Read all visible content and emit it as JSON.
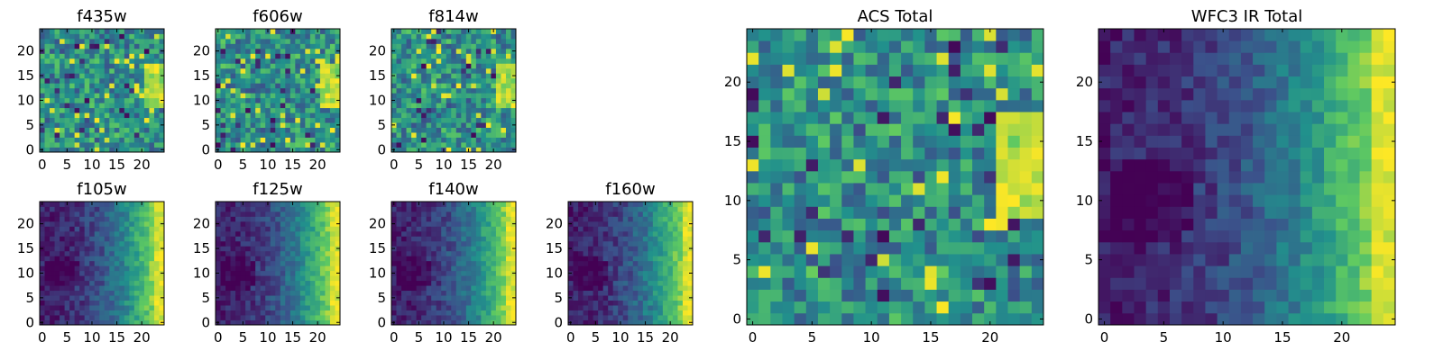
{
  "chart_data": [
    {
      "type": "heatmap",
      "title": "f435w",
      "pattern": "noise",
      "xticks": [
        0,
        5,
        10,
        15,
        20
      ],
      "yticks": [
        0,
        5,
        10,
        15,
        20
      ],
      "xlim": [
        0,
        25
      ],
      "ylim": [
        0,
        25
      ],
      "grid": false,
      "legend": "none"
    },
    {
      "type": "heatmap",
      "title": "f606w",
      "pattern": "noise",
      "xticks": [
        0,
        5,
        10,
        15,
        20
      ],
      "yticks": [
        0,
        5,
        10,
        15,
        20
      ],
      "xlim": [
        0,
        25
      ],
      "ylim": [
        0,
        25
      ],
      "grid": false,
      "legend": "none"
    },
    {
      "type": "heatmap",
      "title": "f814w",
      "pattern": "noise",
      "xticks": [
        0,
        5,
        10,
        15,
        20
      ],
      "yticks": [
        0,
        5,
        10,
        15,
        20
      ],
      "xlim": [
        0,
        25
      ],
      "ylim": [
        0,
        25
      ],
      "grid": false,
      "legend": "none"
    },
    {
      "type": "heatmap",
      "title": "f105w",
      "pattern": "gradient",
      "xticks": [
        0,
        5,
        10,
        15,
        20
      ],
      "yticks": [
        0,
        5,
        10,
        15,
        20
      ],
      "xlim": [
        0,
        25
      ],
      "ylim": [
        0,
        25
      ],
      "grid": false,
      "legend": "none"
    },
    {
      "type": "heatmap",
      "title": "f125w",
      "pattern": "gradient",
      "xticks": [
        0,
        5,
        10,
        15,
        20
      ],
      "yticks": [
        0,
        5,
        10,
        15,
        20
      ],
      "xlim": [
        0,
        25
      ],
      "ylim": [
        0,
        25
      ],
      "grid": false,
      "legend": "none"
    },
    {
      "type": "heatmap",
      "title": "f140w",
      "pattern": "gradient",
      "xticks": [
        0,
        5,
        10,
        15,
        20
      ],
      "yticks": [
        0,
        5,
        10,
        15,
        20
      ],
      "xlim": [
        0,
        25
      ],
      "ylim": [
        0,
        25
      ],
      "grid": false,
      "legend": "none"
    },
    {
      "type": "heatmap",
      "title": "f160w",
      "pattern": "gradient",
      "xticks": [
        0,
        5,
        10,
        15,
        20
      ],
      "yticks": [
        0,
        5,
        10,
        15,
        20
      ],
      "xlim": [
        0,
        25
      ],
      "ylim": [
        0,
        25
      ],
      "grid": false,
      "legend": "none"
    },
    {
      "type": "heatmap",
      "title": "ACS Total",
      "pattern": "noise",
      "xticks": [
        0,
        5,
        10,
        15,
        20
      ],
      "yticks": [
        0,
        5,
        10,
        15,
        20
      ],
      "xlim": [
        0,
        25
      ],
      "ylim": [
        0,
        25
      ],
      "grid": false,
      "legend": "none"
    },
    {
      "type": "heatmap",
      "title": "WFC3 IR Total",
      "pattern": "gradient",
      "xticks": [
        0,
        5,
        10,
        15,
        20
      ],
      "yticks": [
        0,
        5,
        10,
        15,
        20
      ],
      "xlim": [
        0,
        25
      ],
      "ylim": [
        0,
        25
      ],
      "grid": false,
      "legend": "none"
    }
  ],
  "colormap": "viridis",
  "colors": [
    "#440154",
    "#3b528b",
    "#21918c",
    "#5ec962",
    "#fde725"
  ]
}
